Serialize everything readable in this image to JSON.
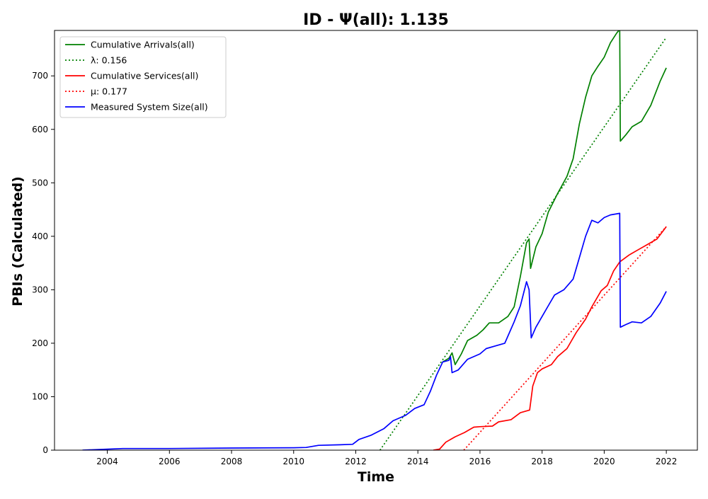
{
  "chart_data": {
    "type": "line",
    "title": "ID -  Ψ(all): 1.135",
    "xlabel": "Time",
    "ylabel": "PBIs (Calculated)",
    "xlim": [
      2002.3,
      2023.0
    ],
    "ylim": [
      0,
      785
    ],
    "x_ticks": [
      2004,
      2006,
      2008,
      2010,
      2012,
      2014,
      2016,
      2018,
      2020,
      2022
    ],
    "y_ticks": [
      0,
      100,
      200,
      300,
      400,
      500,
      600,
      700
    ],
    "grid": false,
    "legend_position": "top-left",
    "series": [
      {
        "name": "Cumulative Arrivals(all)",
        "color": "#008000",
        "style": "solid",
        "points": [
          [
            2014.8,
            165
          ],
          [
            2015.0,
            172
          ],
          [
            2015.1,
            182
          ],
          [
            2015.2,
            160
          ],
          [
            2015.4,
            180
          ],
          [
            2015.6,
            205
          ],
          [
            2015.9,
            215
          ],
          [
            2016.1,
            225
          ],
          [
            2016.3,
            238
          ],
          [
            2016.6,
            238
          ],
          [
            2016.9,
            250
          ],
          [
            2017.1,
            268
          ],
          [
            2017.3,
            325
          ],
          [
            2017.5,
            388
          ],
          [
            2017.58,
            395
          ],
          [
            2017.63,
            340
          ],
          [
            2017.8,
            380
          ],
          [
            2018.0,
            405
          ],
          [
            2018.2,
            445
          ],
          [
            2018.5,
            480
          ],
          [
            2018.8,
            512
          ],
          [
            2019.0,
            545
          ],
          [
            2019.2,
            610
          ],
          [
            2019.4,
            660
          ],
          [
            2019.6,
            700
          ],
          [
            2019.8,
            718
          ],
          [
            2020.0,
            735
          ],
          [
            2020.2,
            762
          ],
          [
            2020.4,
            780
          ],
          [
            2020.5,
            787
          ],
          [
            2020.52,
            578
          ],
          [
            2020.7,
            590
          ],
          [
            2020.9,
            605
          ],
          [
            2021.2,
            615
          ],
          [
            2021.5,
            645
          ],
          [
            2021.8,
            690
          ],
          [
            2022.0,
            715
          ]
        ]
      },
      {
        "name": "λ: 0.156",
        "color": "#008000",
        "style": "dotted",
        "points": [
          [
            2012.78,
            0
          ],
          [
            2022.0,
            772
          ]
        ]
      },
      {
        "name": "Cumulative Services(all)",
        "color": "#ff0000",
        "style": "solid",
        "points": [
          [
            2014.5,
            0
          ],
          [
            2014.7,
            2
          ],
          [
            2014.9,
            15
          ],
          [
            2015.2,
            25
          ],
          [
            2015.5,
            33
          ],
          [
            2015.8,
            43
          ],
          [
            2016.0,
            44
          ],
          [
            2016.4,
            45
          ],
          [
            2016.6,
            53
          ],
          [
            2017.0,
            57
          ],
          [
            2017.3,
            70
          ],
          [
            2017.6,
            75
          ],
          [
            2017.7,
            120
          ],
          [
            2017.85,
            145
          ],
          [
            2018.0,
            152
          ],
          [
            2018.3,
            160
          ],
          [
            2018.5,
            175
          ],
          [
            2018.8,
            190
          ],
          [
            2019.1,
            220
          ],
          [
            2019.4,
            245
          ],
          [
            2019.6,
            268
          ],
          [
            2019.9,
            298
          ],
          [
            2020.1,
            308
          ],
          [
            2020.3,
            335
          ],
          [
            2020.5,
            352
          ],
          [
            2020.8,
            365
          ],
          [
            2021.1,
            375
          ],
          [
            2021.4,
            385
          ],
          [
            2021.7,
            395
          ],
          [
            2022.0,
            418
          ]
        ]
      },
      {
        "name": "μ: 0.177",
        "color": "#ff0000",
        "style": "dotted",
        "points": [
          [
            2015.48,
            0
          ],
          [
            2022.0,
            418
          ]
        ]
      },
      {
        "name": "Measured System Size(all)",
        "color": "#0000ff",
        "style": "solid",
        "points": [
          [
            2003.2,
            0
          ],
          [
            2004.5,
            3
          ],
          [
            2006.0,
            3
          ],
          [
            2008.0,
            4
          ],
          [
            2010.0,
            4.5
          ],
          [
            2010.4,
            5
          ],
          [
            2010.8,
            9
          ],
          [
            2011.5,
            10
          ],
          [
            2011.9,
            11
          ],
          [
            2012.1,
            20
          ],
          [
            2012.5,
            28
          ],
          [
            2012.9,
            40
          ],
          [
            2013.2,
            55
          ],
          [
            2013.6,
            65
          ],
          [
            2013.9,
            78
          ],
          [
            2014.2,
            85
          ],
          [
            2014.4,
            110
          ],
          [
            2014.6,
            140
          ],
          [
            2014.8,
            165
          ],
          [
            2015.0,
            168
          ],
          [
            2015.05,
            175
          ],
          [
            2015.1,
            145
          ],
          [
            2015.3,
            150
          ],
          [
            2015.6,
            170
          ],
          [
            2016.0,
            180
          ],
          [
            2016.2,
            190
          ],
          [
            2016.5,
            195
          ],
          [
            2016.8,
            200
          ],
          [
            2017.1,
            240
          ],
          [
            2017.3,
            270
          ],
          [
            2017.5,
            315
          ],
          [
            2017.58,
            300
          ],
          [
            2017.65,
            210
          ],
          [
            2017.8,
            230
          ],
          [
            2018.0,
            250
          ],
          [
            2018.2,
            270
          ],
          [
            2018.4,
            290
          ],
          [
            2018.7,
            300
          ],
          [
            2019.0,
            320
          ],
          [
            2019.2,
            360
          ],
          [
            2019.4,
            400
          ],
          [
            2019.6,
            430
          ],
          [
            2019.8,
            425
          ],
          [
            2020.0,
            435
          ],
          [
            2020.2,
            440
          ],
          [
            2020.4,
            442
          ],
          [
            2020.5,
            443
          ],
          [
            2020.52,
            230
          ],
          [
            2020.7,
            235
          ],
          [
            2020.9,
            240
          ],
          [
            2021.2,
            238
          ],
          [
            2021.5,
            250
          ],
          [
            2021.8,
            275
          ],
          [
            2022.0,
            297
          ]
        ]
      }
    ]
  }
}
